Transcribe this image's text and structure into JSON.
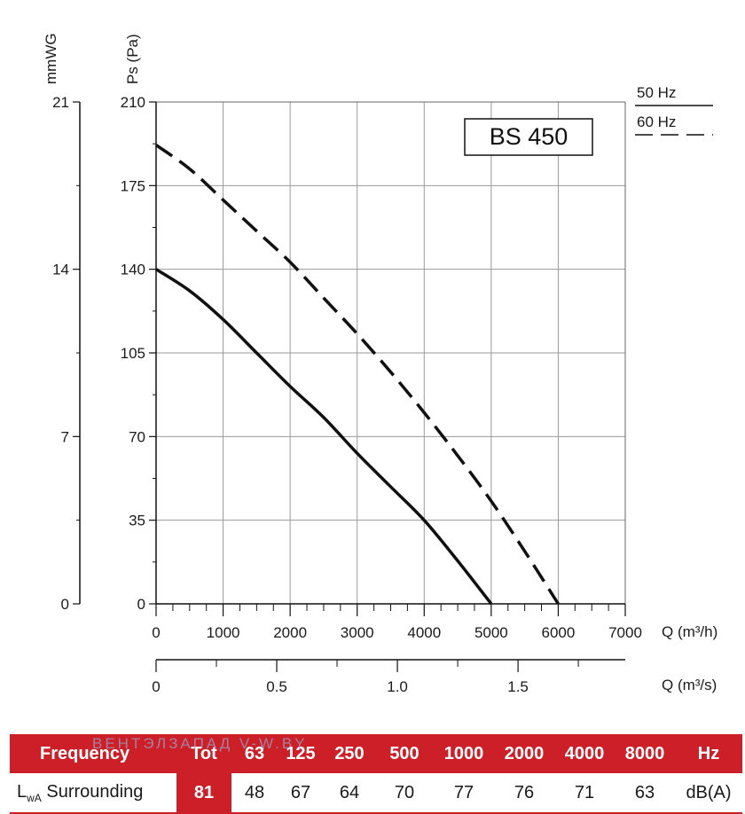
{
  "chart_data": {
    "type": "line",
    "title": "BS 450",
    "xlabel": "Q (m³/h)",
    "x2label": "Q (m³/s)",
    "ylabel": "Ps (Pa)",
    "y2label": "mmWG",
    "xlim": [
      0,
      7000
    ],
    "ylim": [
      0,
      210
    ],
    "x_ticks": [
      "0",
      "1000",
      "2000",
      "3000",
      "4000",
      "5000",
      "6000",
      "7000"
    ],
    "y_ticks": [
      "0",
      "35",
      "70",
      "105",
      "140",
      "175",
      "210"
    ],
    "y2_ticks": [
      "0",
      "7",
      "14",
      "21"
    ],
    "x2_ticks": [
      "0",
      "0.5",
      "1.0",
      "1.5"
    ],
    "grid": true,
    "legend": [
      {
        "label": "50 Hz",
        "style": "solid"
      },
      {
        "label": "60 Hz",
        "style": "dashed"
      }
    ],
    "series": [
      {
        "name": "50 Hz",
        "style": "solid",
        "x": [
          0,
          500,
          1000,
          1500,
          2000,
          2500,
          3000,
          3500,
          4000,
          4500,
          5000
        ],
        "y": [
          140,
          131,
          119,
          105,
          91,
          78,
          63,
          49,
          35,
          18,
          0
        ]
      },
      {
        "name": "60 Hz",
        "style": "dashed",
        "x": [
          0,
          500,
          1000,
          1500,
          2000,
          2500,
          3000,
          3500,
          4000,
          4500,
          5000,
          5500,
          6000
        ],
        "y": [
          192,
          182,
          169,
          156,
          143,
          128,
          113,
          97,
          80,
          62,
          43,
          22,
          0
        ]
      }
    ]
  },
  "noise_table": {
    "header": [
      "Frequency",
      "Tot",
      "63",
      "125",
      "250",
      "500",
      "1000",
      "2000",
      "4000",
      "8000",
      "Hz"
    ],
    "row_label_main": "L",
    "row_label_sub": "wA",
    "row_label_rest": " Surrounding",
    "row": [
      "81",
      "48",
      "67",
      "64",
      "70",
      "77",
      "76",
      "71",
      "63",
      "dB(A)"
    ]
  },
  "watermark": "ВЕНТЭЛЗАПАД   V-W.BY",
  "colors": {
    "accent": "#cc1f27",
    "grid": "#9a9a9a",
    "line": "#111111"
  }
}
